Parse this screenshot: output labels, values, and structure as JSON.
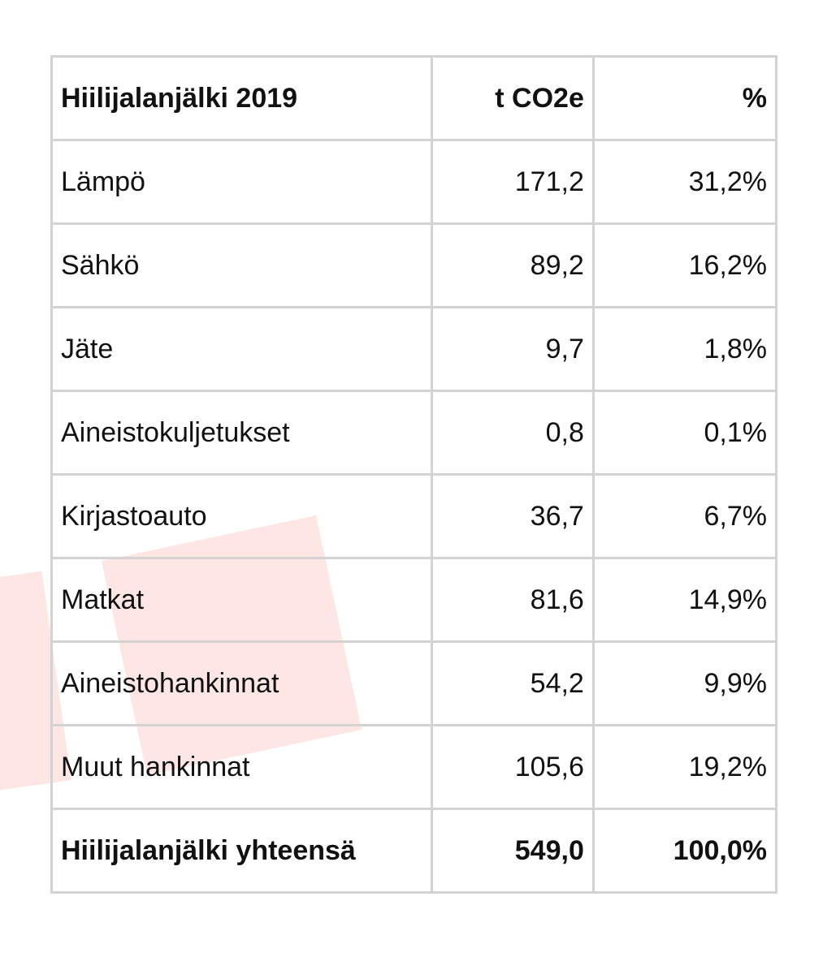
{
  "table": {
    "headers": {
      "label": "Hiilijalanjälki 2019",
      "co2": "t CO2e",
      "pct": "%"
    },
    "rows": [
      {
        "label": "Lämpö",
        "co2": "171,2",
        "pct": "31,2%"
      },
      {
        "label": "Sähkö",
        "co2": "89,2",
        "pct": "16,2%"
      },
      {
        "label": "Jäte",
        "co2": "9,7",
        "pct": "1,8%"
      },
      {
        "label": "Aineistokuljetukset",
        "co2": "0,8",
        "pct": "0,1%"
      },
      {
        "label": "Kirjastoauto",
        "co2": "36,7",
        "pct": "6,7%"
      },
      {
        "label": "Matkat",
        "co2": "81,6",
        "pct": "14,9%"
      },
      {
        "label": "Aineistohankinnat",
        "co2": "54,2",
        "pct": "9,9%"
      },
      {
        "label": "Muut hankinnat",
        "co2": "105,6",
        "pct": "19,2%"
      }
    ],
    "total": {
      "label": "Hiilijalanjälki yhteensä",
      "co2": "549,0",
      "pct": "100,0%"
    }
  },
  "colors": {
    "border": "#d3d3d3",
    "decor_shape": "#fde6e3",
    "text": "#111111"
  }
}
